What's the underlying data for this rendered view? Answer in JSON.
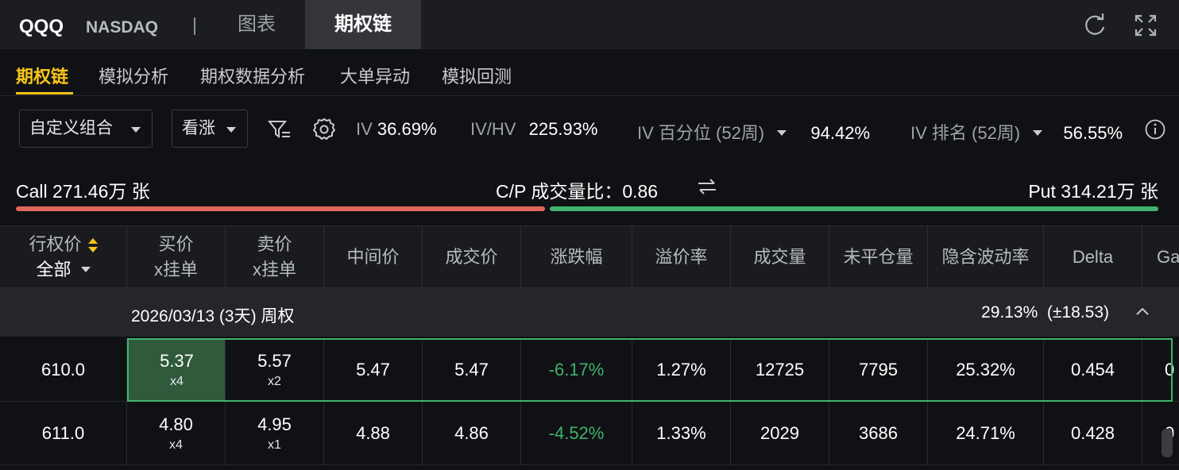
{
  "header": {
    "symbol": "QQQ",
    "exchange": "NASDAQ",
    "tabs": [
      {
        "label": "图表",
        "active": false
      },
      {
        "label": "期权链",
        "active": true
      }
    ]
  },
  "subnav": {
    "items": [
      "期权链",
      "模拟分析",
      "期权数据分析",
      "大单异动",
      "模拟回测"
    ],
    "active_index": 0
  },
  "controls": {
    "strategy_select": "自定义组合",
    "direction_select": "看涨",
    "iv_label": "IV",
    "iv_value": "36.69%",
    "ivhv_label": "IV/HV",
    "ivhv_value": "225.93%",
    "iv_pct_label": "IV 百分位 (52周)",
    "iv_pct_value": "94.42%",
    "iv_rank_label": "IV 排名 (52周)",
    "iv_rank_value": "56.55%"
  },
  "volume_summary": {
    "call_text": "Call 271.46万 张",
    "ratio_text": "C/P 成交量比：0.86",
    "put_text": "Put 314.21万 张",
    "call_share": 0.463
  },
  "table": {
    "headers": {
      "strike": "行权价",
      "strike_filter": "全部",
      "bid_l1": "买价",
      "bid_l2": "x挂单",
      "ask_l1": "卖价",
      "ask_l2": "x挂单",
      "mid": "中间价",
      "last": "成交价",
      "change": "涨跌幅",
      "premium": "溢价率",
      "volume": "成交量",
      "oi": "未平仓量",
      "iv": "隐含波动率",
      "delta": "Delta",
      "next": "Ga"
    },
    "expiry": {
      "label": "2026/03/13 (3天) 周权",
      "iv": "29.13%",
      "move": "(±18.53)"
    },
    "rows": [
      {
        "strike": "610.0",
        "bid": "5.37",
        "bid_size": "x4",
        "ask": "5.57",
        "ask_size": "x2",
        "mid": "5.47",
        "last": "5.47",
        "change": "-6.17%",
        "premium": "1.27%",
        "volume": "12725",
        "oi": "7795",
        "iv": "25.32%",
        "delta": "0.454",
        "next": "0"
      },
      {
        "strike": "611.0",
        "bid": "4.80",
        "bid_size": "x4",
        "ask": "4.95",
        "ask_size": "x1",
        "mid": "4.88",
        "last": "4.86",
        "change": "-4.52%",
        "premium": "1.33%",
        "volume": "2029",
        "oi": "3686",
        "iv": "24.71%",
        "delta": "0.428",
        "next": "0"
      }
    ]
  },
  "colors": {
    "accent": "#f5c518",
    "call_bar": "#e0675c",
    "put_bar": "#3fb36d",
    "negative": "#3fb36d",
    "selected_bid": "#2f5a3c"
  }
}
